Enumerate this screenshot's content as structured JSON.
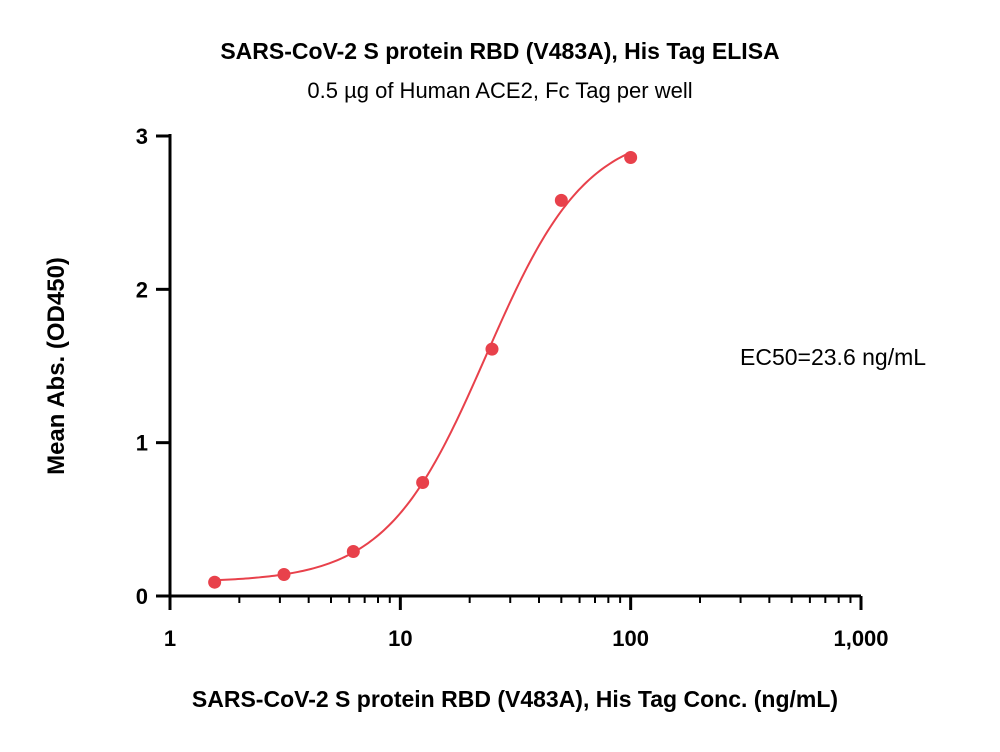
{
  "chart_data": {
    "type": "scatter",
    "title": "SARS-CoV-2 S protein RBD (V483A), His Tag ELISA",
    "subtitle": "0.5 µg of Human ACE2, Fc Tag per well",
    "xlabel": "SARS-CoV-2 S protein RBD (V483A), His Tag Conc. (ng/mL)",
    "ylabel": "Mean Abs. (OD450)",
    "x_scale": "log",
    "xlim": [
      1,
      1000
    ],
    "ylim": [
      0,
      3
    ],
    "x_ticks": [
      1,
      10,
      100,
      1000
    ],
    "x_tick_labels": [
      "1",
      "10",
      "100",
      "1,000"
    ],
    "y_ticks": [
      0,
      1,
      2,
      3
    ],
    "y_tick_labels": [
      "0",
      "1",
      "2",
      "3"
    ],
    "grid": false,
    "annotation": "EC50=23.6 ng/mL",
    "color": "#e8414b",
    "series": [
      {
        "x": [
          1.5625,
          3.125,
          6.25,
          12.5,
          25,
          50,
          100
        ],
        "y": [
          0.09,
          0.14,
          0.29,
          0.74,
          1.61,
          2.58,
          2.86
        ]
      }
    ],
    "fit": {
      "model": "4PL",
      "bottom": 0.09,
      "top": 3.05,
      "ec50": 23.6,
      "hill": 2.0
    }
  }
}
